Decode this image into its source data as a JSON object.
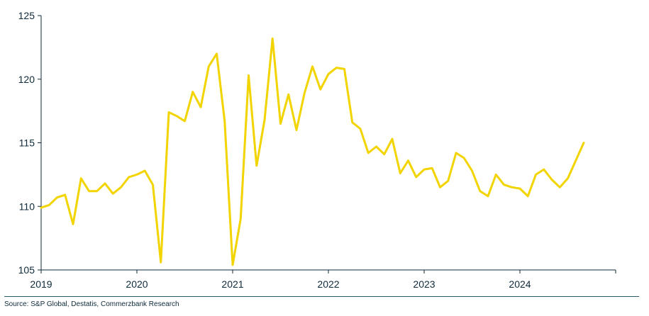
{
  "chart_data": {
    "type": "line",
    "title": "",
    "xlabel": "",
    "ylabel": "",
    "ylim": [
      105,
      125
    ],
    "yticks": [
      105,
      110,
      115,
      120,
      125
    ],
    "xlim": [
      2019,
      2025
    ],
    "xticks": [
      "2019",
      "2020",
      "2021",
      "2022",
      "2023",
      "2024"
    ],
    "grid": false,
    "legend": "none",
    "line_color": "#f2d400",
    "axis_color": "#0f2a3a",
    "series": [
      {
        "values": [
          109.9,
          110.1,
          110.7,
          110.9,
          108.6,
          112.2,
          111.2,
          111.2,
          111.8,
          111.0,
          111.5,
          112.3,
          112.5,
          112.8,
          111.7,
          105.6,
          117.4,
          117.1,
          116.7,
          119.0,
          117.8,
          121.0,
          122.0,
          116.7,
          105.4,
          109.0,
          120.3,
          113.2,
          116.8,
          123.2,
          116.5,
          118.8,
          116.0,
          118.9,
          121.0,
          119.2,
          120.4,
          120.9,
          120.8,
          116.6,
          116.1,
          114.2,
          114.7,
          114.1,
          115.3,
          112.6,
          113.6,
          112.3,
          112.9,
          113.0,
          111.5,
          112.0,
          114.2,
          113.8,
          112.8,
          111.2,
          110.8,
          112.5,
          111.7,
          111.5,
          111.4,
          110.8,
          112.5,
          112.9,
          112.1,
          111.5,
          112.2,
          113.6,
          115.0
        ]
      }
    ]
  },
  "source": "Source: S&P Global, Destatis, Commerzbank Research"
}
